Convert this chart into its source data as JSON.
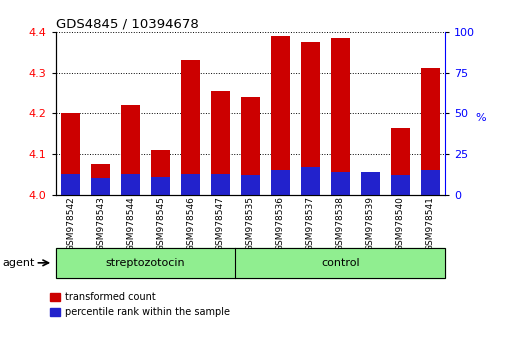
{
  "title": "GDS4845 / 10394678",
  "samples": [
    "GSM978542",
    "GSM978543",
    "GSM978544",
    "GSM978545",
    "GSM978546",
    "GSM978547",
    "GSM978535",
    "GSM978536",
    "GSM978537",
    "GSM978538",
    "GSM978539",
    "GSM978540",
    "GSM978541"
  ],
  "transformed_count": [
    4.2,
    4.075,
    4.22,
    4.11,
    4.33,
    4.255,
    4.24,
    4.39,
    4.375,
    4.385,
    4.055,
    4.165,
    4.31
  ],
  "percentile_rank": [
    13,
    10,
    13,
    11,
    13,
    13,
    12,
    15,
    17,
    14,
    14,
    12,
    15
  ],
  "groups": [
    "streptozotocin",
    "streptozotocin",
    "streptozotocin",
    "streptozotocin",
    "streptozotocin",
    "streptozotocin",
    "control",
    "control",
    "control",
    "control",
    "control",
    "control",
    "control"
  ],
  "bar_color_red": "#CC0000",
  "bar_color_blue": "#2222CC",
  "ylim_left": [
    4.0,
    4.4
  ],
  "ylim_right": [
    0,
    100
  ],
  "yticks_left": [
    4.0,
    4.1,
    4.2,
    4.3,
    4.4
  ],
  "yticks_right": [
    0,
    25,
    50,
    75,
    100
  ],
  "background_color": "#ffffff",
  "bar_width": 0.65,
  "group_box_color": "#90EE90",
  "strep_count": 6,
  "ctrl_count": 7
}
